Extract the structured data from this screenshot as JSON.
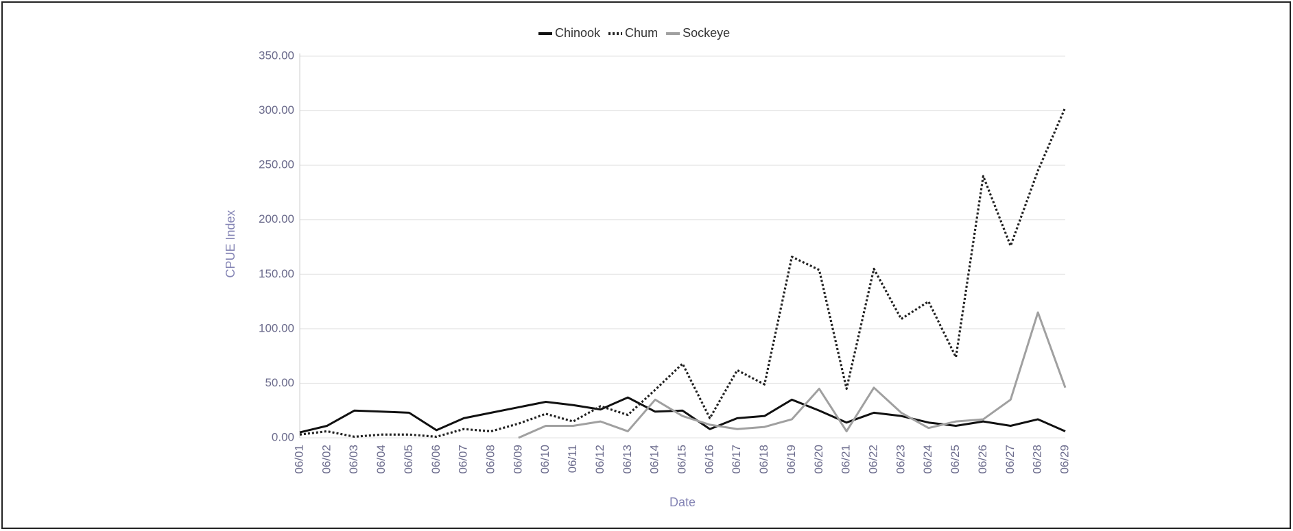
{
  "chart_data": {
    "type": "line",
    "x_label": "Date",
    "y_label": "CPUE Index",
    "categories": [
      "06/01",
      "06/02",
      "06/03",
      "06/04",
      "06/05",
      "06/06",
      "06/07",
      "06/08",
      "06/09",
      "06/10",
      "06/11",
      "06/12",
      "06/13",
      "06/14",
      "06/15",
      "06/16",
      "06/17",
      "06/18",
      "06/19",
      "06/20",
      "06/21",
      "06/22",
      "06/23",
      "06/24",
      "06/25",
      "06/26",
      "06/27",
      "06/28",
      "06/29"
    ],
    "series": [
      {
        "name": "Chinook",
        "color": "#111111",
        "style": "solid",
        "values": [
          5,
          11,
          25,
          24,
          23,
          7,
          18,
          23,
          28,
          33,
          30,
          26,
          37,
          24,
          25,
          8,
          18,
          20,
          35,
          25,
          14,
          23,
          20,
          14,
          11,
          15,
          11,
          17,
          6
        ]
      },
      {
        "name": "Chum",
        "color": "#222222",
        "style": "dotted",
        "values": [
          3,
          6,
          1,
          3,
          3,
          1,
          8,
          6,
          13,
          22,
          15,
          29,
          21,
          44,
          68,
          18,
          62,
          49,
          166,
          154,
          45,
          155,
          109,
          125,
          74,
          240,
          176,
          245,
          303
        ]
      },
      {
        "name": "Sockeye",
        "color": "#a0a0a0",
        "style": "solid",
        "values": [
          null,
          null,
          null,
          null,
          null,
          null,
          null,
          null,
          0,
          11,
          11,
          15,
          6,
          35,
          20,
          12,
          8,
          10,
          17,
          45,
          6,
          46,
          23,
          9,
          15,
          17,
          35,
          115,
          46
        ]
      }
    ],
    "ylim": [
      0,
      350
    ],
    "yticks": [
      {
        "value": 0,
        "label": "0.00"
      },
      {
        "value": 50,
        "label": "50.00"
      },
      {
        "value": 100,
        "label": "100.00"
      },
      {
        "value": 150,
        "label": "150.00"
      },
      {
        "value": 200,
        "label": "200.00"
      },
      {
        "value": 250,
        "label": "250.00"
      },
      {
        "value": 300,
        "label": "300.00"
      },
      {
        "value": 350,
        "label": "350.00"
      }
    ],
    "grid": true,
    "legend": "top"
  }
}
